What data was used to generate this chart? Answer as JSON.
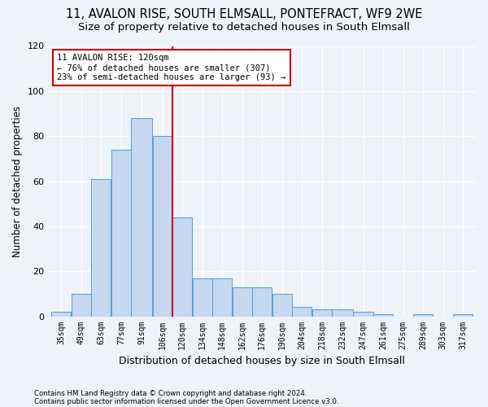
{
  "title1": "11, AVALON RISE, SOUTH ELMSALL, PONTEFRACT, WF9 2WE",
  "title2": "Size of property relative to detached houses in South Elmsall",
  "xlabel": "Distribution of detached houses by size in South Elmsall",
  "ylabel": "Number of detached properties",
  "footnote1": "Contains HM Land Registry data © Crown copyright and database right 2024.",
  "footnote2": "Contains public sector information licensed under the Open Government Licence v3.0.",
  "bar_edges": [
    35,
    49,
    63,
    77,
    91,
    106,
    120,
    134,
    148,
    162,
    176,
    190,
    204,
    218,
    232,
    247,
    261,
    275,
    289,
    303,
    317
  ],
  "bar_values": [
    2,
    10,
    61,
    74,
    88,
    80,
    44,
    17,
    17,
    13,
    13,
    10,
    4,
    3,
    3,
    2,
    1,
    0,
    1,
    0,
    1
  ],
  "bin_labels": [
    "35sqm",
    "49sqm",
    "63sqm",
    "77sqm",
    "91sqm",
    "106sqm",
    "120sqm",
    "134sqm",
    "148sqm",
    "162sqm",
    "176sqm",
    "190sqm",
    "204sqm",
    "218sqm",
    "232sqm",
    "247sqm",
    "261sqm",
    "275sqm",
    "289sqm",
    "303sqm",
    "317sqm"
  ],
  "bar_color": "#c5d8f0",
  "bar_edge_color": "#5b9bd5",
  "vline_x": 120,
  "vline_color": "#cc0000",
  "annotation_line1": "11 AVALON RISE: 120sqm",
  "annotation_line2": "← 76% of detached houses are smaller (307)",
  "annotation_line3": "23% of semi-detached houses are larger (93) →",
  "annotation_box_color": "#ffffff",
  "annotation_border_color": "#cc0000",
  "ylim": [
    0,
    120
  ],
  "yticks": [
    0,
    20,
    40,
    60,
    80,
    100,
    120
  ],
  "background_color": "#eef2f9",
  "title1_fontsize": 10.5,
  "title2_fontsize": 9.5,
  "xlabel_fontsize": 9,
  "ylabel_fontsize": 8.5,
  "tick_fontsize": 7,
  "annotation_fontsize": 7.5
}
